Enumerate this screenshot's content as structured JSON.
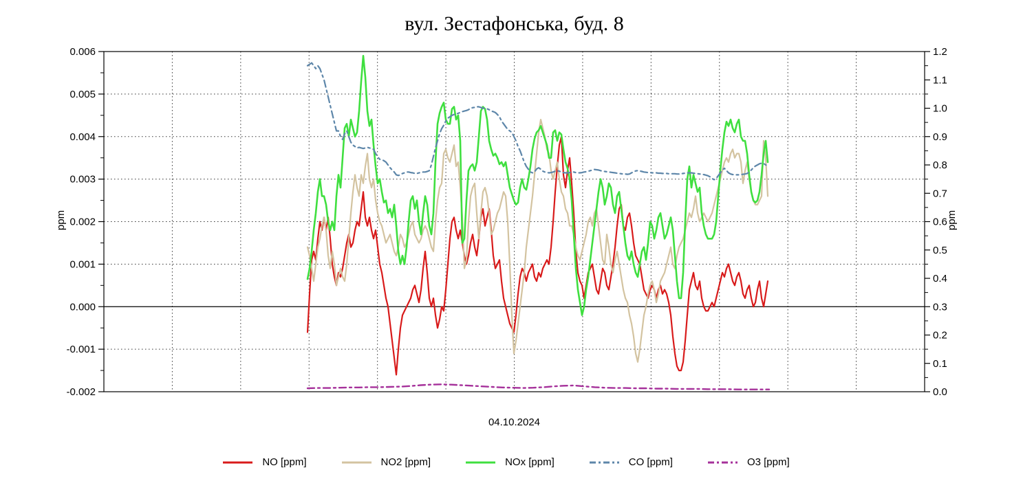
{
  "title": "вул. Зестафонська, буд. 8",
  "x_axis": {
    "date_label": "04.10.2024"
  },
  "left_axis": {
    "label": "ppm",
    "ticks": [
      "0.006",
      "0.005",
      "0.004",
      "0.003",
      "0.002",
      "0.001",
      "0.000",
      "-0.001",
      "-0.002"
    ]
  },
  "right_axis": {
    "label": "ppm",
    "ticks": [
      "1.2",
      "1.1",
      "1.0",
      "0.9",
      "0.8",
      "0.7",
      "0.6",
      "0.5",
      "0.4",
      "0.3",
      "0.2",
      "0.1",
      "0.0"
    ]
  },
  "legend": [
    {
      "label": "NO [ppm]",
      "color": "#d81a1a",
      "dash": "solid"
    },
    {
      "label": "NO2 [ppm]",
      "color": "#d3c3a0",
      "dash": "solid"
    },
    {
      "label": "NOx [ppm]",
      "color": "#3fdf3f",
      "dash": "solid"
    },
    {
      "label": "CO [ppm]",
      "color": "#5d86a9",
      "dash": "dashdot"
    },
    {
      "label": "O3 [ppm]",
      "color": "#a5309a",
      "dash": "dashdot"
    }
  ],
  "chart_data": {
    "type": "line",
    "title": "вул. Зестафонська, буд. 8",
    "x_label": "04.10.2024",
    "x_axis_note": "time axis without tick labels; x stored as fraction of plot width (0=left axis, 1=right axis), data occupies ~0.25..0.81",
    "left_axis": {
      "label": "ppm",
      "range": [
        -0.002,
        0.006
      ],
      "tick_step": 0.001
    },
    "right_axis": {
      "label": "ppm",
      "range": [
        0.0,
        1.2
      ],
      "tick_step": 0.1
    },
    "grid": true,
    "legend_position": "bottom",
    "zero_line_left_axis": true,
    "series": [
      {
        "name": "NO [ppm]",
        "axis": "left",
        "color": "#d81a1a",
        "dash": "solid",
        "width": 2.2,
        "x0": 0.2481,
        "dx": 0.0025146,
        "values": [
          -0.0006,
          0.0003,
          0.0011,
          0.0013,
          0.0011,
          0.0016,
          0.002,
          0.0018,
          0.0021,
          0.0018,
          0.0021,
          0.0016,
          0.001,
          0.0007,
          0.0005,
          0.0008,
          0.0007,
          0.0009,
          0.0012,
          0.0015,
          0.0017,
          0.0014,
          0.0015,
          0.0018,
          0.002,
          0.0019,
          0.0023,
          0.0027,
          0.0021,
          0.0019,
          0.0021,
          0.0018,
          0.0016,
          0.0018,
          0.0014,
          0.001,
          0.0008,
          0.0005,
          0.0002,
          0,
          -0.0004,
          -0.0008,
          -0.0012,
          -0.0016,
          -0.001,
          -0.0005,
          -0.0002,
          -0.0001,
          0,
          0.0001,
          0.0002,
          0.0004,
          0.0005,
          0.0003,
          0.0001,
          0.0004,
          0.0009,
          0.0013,
          0.0008,
          0.0002,
          0,
          0.0002,
          -0.0002,
          -0.0005,
          -0.0003,
          0,
          -0.0001,
          0.0004,
          0.001,
          0.0016,
          0.002,
          0.0021,
          0.0018,
          0.0016,
          0.0018,
          0.0015,
          0.0012,
          0.001,
          0.0012,
          0.0015,
          0.0017,
          0.0014,
          0.0012,
          0.0016,
          0.0021,
          0.0023,
          0.0019,
          0.0021,
          0.0023,
          0.0018,
          0.0012,
          0.0009,
          0.001,
          0.0011,
          0.0006,
          0.0002,
          0,
          -0.0002,
          -0.0004,
          -0.0005,
          -0.0006,
          -0.0002,
          0.0003,
          0.0007,
          0.0009,
          0.0008,
          0.0006,
          0.0008,
          0.0009,
          0.001,
          0.0007,
          0.0006,
          0.0008,
          0.0007,
          0.0009,
          0.001,
          0.0011,
          0.001,
          0.0014,
          0.002,
          0.0027,
          0.0033,
          0.0038,
          0.004,
          0.0031,
          0.0028,
          0.0032,
          0.0035,
          0.0029,
          0.0022,
          0.0013,
          0.0008,
          0.0006,
          0.0005,
          0.0002,
          0.0005,
          0.0008,
          0.0009,
          0.001,
          0.0007,
          0.0004,
          0.0003,
          0.0006,
          0.0009,
          0.0008,
          0.0005,
          0.0004,
          0.0007,
          0.001,
          0.0014,
          0.0019,
          0.0023,
          0.0024,
          0.0019,
          0.0018,
          0.0021,
          0.0022,
          0.0019,
          0.0015,
          0.0012,
          0.0011,
          0.001,
          0.0007,
          0.0004,
          0.0003,
          0.0002,
          0.0004,
          0.0005,
          0.0004,
          0.0002,
          0.0004,
          0.0005,
          0.0003,
          0.0004,
          0.0003,
          0.0001,
          -0.0002,
          -0.0007,
          -0.0011,
          -0.0014,
          -0.0015,
          -0.0015,
          -0.0013,
          -0.0008,
          -0.0002,
          0.0004,
          0.0006,
          0.0008,
          0.0005,
          0.0004,
          0.0006,
          0.0002,
          0,
          -0.0001,
          -0.0001,
          0,
          0.0001,
          0,
          0.0002,
          0.0004,
          0.0006,
          0.0008,
          0.0007,
          0.0009,
          0.001,
          0.0008,
          0.0006,
          0.0005,
          0.0007,
          0.0008,
          0.0006,
          0.0003,
          0.0002,
          0.0004,
          0.0005,
          0.0002,
          0,
          0.0001,
          0.0004,
          0.0006,
          0.0002,
          0,
          0.0003,
          0.0006
        ]
      },
      {
        "name": "NO2 [ppm]",
        "axis": "left",
        "color": "#d3c3a0",
        "dash": "solid",
        "width": 2.2,
        "x0": 0.2481,
        "dx": 0.0025146,
        "values": [
          0.0014,
          0.0012,
          0.0009,
          0.0006,
          0.001,
          0.0014,
          0.0016,
          0.0019,
          0.0021,
          0.0018,
          0.0012,
          0.0009,
          0.0013,
          0.001,
          0.0005,
          0.0007,
          0.0009,
          0.0007,
          0.0006,
          0.001,
          0.0016,
          0.0022,
          0.0027,
          0.0031,
          0.0028,
          0.0026,
          0.0031,
          0.0029,
          0.0033,
          0.0036,
          0.003,
          0.0028,
          0.003,
          0.0025,
          0.0022,
          0.002,
          0.0019,
          0.0017,
          0.0015,
          0.0016,
          0.0017,
          0.0015,
          0.0013,
          0.0012,
          0.0014,
          0.0017,
          0.0016,
          0.0014,
          0.0015,
          0.0017,
          0.0019,
          0.002,
          0.0017,
          0.0016,
          0.0015,
          0.0016,
          0.0018,
          0.0019,
          0.0018,
          0.0016,
          0.0014,
          0.0013,
          0.002,
          0.0025,
          0.0028,
          0.0029,
          0.0036,
          0.0037,
          0.0035,
          0.0034,
          0.0036,
          0.0038,
          0.0033,
          0.0034,
          0.0028,
          0.0021,
          0.0009,
          0.0011,
          0.002,
          0.0026,
          0.0028,
          0.0029,
          0.0022,
          0.0016,
          0.0022,
          0.0027,
          0.0028,
          0.0026,
          0.0022,
          0.0017,
          0.0018,
          0.002,
          0.0022,
          0.0023,
          0.0025,
          0.0027,
          0.0026,
          0.002,
          0.001,
          -0.0002,
          -0.0011,
          -0.0008,
          -0.0004,
          0,
          0.0004,
          0.0008,
          0.0014,
          0.0018,
          0.0022,
          0.0026,
          0.0031,
          0.0036,
          0.0041,
          0.0044,
          0.0042,
          0.004,
          0.0037,
          0.0036,
          0.0032,
          0.003,
          0.0032,
          0.0034,
          0.003,
          0.0027,
          0.0026,
          0.0023,
          0.0022,
          0.0019,
          0.0019,
          0.0017,
          0.0014,
          0.0012,
          0.0011,
          0.0013,
          0.0015,
          0.0017,
          0.002,
          0.0021,
          0.0019,
          0.0022,
          0.0023,
          0.0019,
          0.0015,
          0.0011,
          0.001,
          0.0017,
          0.0014,
          0.001,
          0.0008,
          0.0011,
          0.0013,
          0.001,
          0.0007,
          0.0004,
          0.0002,
          0.0001,
          -0.0002,
          -0.0004,
          -0.0007,
          -0.0011,
          -0.0013,
          -0.001,
          -0.0006,
          -0.0002,
          0,
          0.0003,
          0.0005,
          0.0006,
          0.0004,
          0.0001,
          0.0003,
          0.0006,
          0.0007,
          0.0008,
          0.001,
          0.0012,
          0.0014,
          0.001,
          0.0009,
          0.0012,
          0.0014,
          0.0015,
          0.0016,
          0.0018,
          0.002,
          0.0022,
          0.0021,
          0.0023,
          0.0026,
          0.0022,
          0.002,
          0.0021,
          0.0022,
          0.0021,
          0.002,
          0.0021,
          0.0022,
          0.0024,
          0.0026,
          0.0028,
          0.003,
          0.0032,
          0.0034,
          0.0035,
          0.0034,
          0.0036,
          0.0037,
          0.0035,
          0.0036,
          0.0036,
          0.0034,
          0.0029,
          0.0032,
          0.0034,
          0.003,
          0.0027,
          0.0025,
          0.0024,
          0.0024,
          0.0025,
          0.0026,
          0.0039,
          0.0035,
          0.0026
        ]
      },
      {
        "name": "NOx [ppm]",
        "axis": "left",
        "color": "#3fdf3f",
        "dash": "solid",
        "width": 2.6,
        "x0": 0.2481,
        "dx": 0.0025146,
        "values": [
          0.00065,
          0.0009,
          0.0013,
          0.0018,
          0.0022,
          0.0027,
          0.003,
          0.0026,
          0.0026,
          0.0024,
          0.002,
          0.0018,
          0.002,
          0.0018,
          0.0026,
          0.0031,
          0.0028,
          0.0035,
          0.0042,
          0.0043,
          0.004,
          0.0044,
          0.0042,
          0.004,
          0.0041,
          0.0046,
          0.0053,
          0.0059,
          0.0054,
          0.0046,
          0.00425,
          0.0044,
          0.0038,
          0.0033,
          0.0029,
          0.003,
          0.0027,
          0.00245,
          0.0025,
          0.0022,
          0.0023,
          0.0021,
          0.0024,
          0.0019,
          0.0013,
          0.001,
          0.0012,
          0.001,
          0.0014,
          0.002,
          0.0025,
          0.0026,
          0.0023,
          0.0025,
          0.002,
          0.0017,
          0.0022,
          0.0026,
          0.0024,
          0.0019,
          0.0017,
          0.0022,
          0.0034,
          0.0043,
          0.00455,
          0.0047,
          0.0048,
          0.0044,
          0.0043,
          0.0043,
          0.00465,
          0.0047,
          0.0044,
          0.0045,
          0.0039,
          0.0015,
          0.0016,
          0.0025,
          0.0032,
          0.0033,
          0.00335,
          0.0032,
          0.0034,
          0.004,
          0.0046,
          0.0047,
          0.00465,
          0.0044,
          0.0039,
          0.0037,
          0.00355,
          0.0036,
          0.0035,
          0.00335,
          0.0034,
          0.0033,
          0.0034,
          0.0031,
          0.0028,
          0.00265,
          0.0025,
          0.0024,
          0.00245,
          0.0028,
          0.003,
          0.0028,
          0.00275,
          0.003,
          0.0033,
          0.0037,
          0.00395,
          0.0041,
          0.00415,
          0.00425,
          0.0041,
          0.00395,
          0.0038,
          0.0035,
          0.0035,
          0.0041,
          0.00415,
          0.0039,
          0.0041,
          0.00405,
          0.0037,
          0.0034,
          0.00325,
          0.003,
          0.0025,
          0.0017,
          0.0009,
          0.0004,
          0.0001,
          -0.0002,
          0,
          0.0004,
          0.0007,
          0.0011,
          0.0015,
          0.0019,
          0.0023,
          0.0027,
          0.003,
          0.0028,
          0.0024,
          0.0026,
          0.0029,
          0.0028,
          0.0024,
          0.0022,
          0.0026,
          0.0027,
          0.0023,
          0.0019,
          0.0015,
          0.0012,
          0.0011,
          0.0013,
          0.001,
          0.0008,
          0.0007,
          0.001,
          0.0013,
          0.0014,
          0.0011,
          0.0015,
          0.002,
          0.0019,
          0.0016,
          0.0018,
          0.0021,
          0.0022,
          0.0019,
          0.0016,
          0.0017,
          0.0019,
          0.0021,
          0.0018,
          0.0012,
          0.0006,
          0.0002,
          0.0002,
          0.0008,
          0.002,
          0.003,
          0.0033,
          0.0028,
          0.0031,
          0.0029,
          0.0027,
          0.0028,
          0.0022,
          0.0019,
          0.0017,
          0.0016,
          0.0016,
          0.0016,
          0.0017,
          0.002,
          0.0026,
          0.0032,
          0.0037,
          0.0041,
          0.00435,
          0.00425,
          0.0044,
          0.0042,
          0.0041,
          0.0043,
          0.0044,
          0.004,
          0.0039,
          0.0039,
          0.0036,
          0.0031,
          0.0027,
          0.0025,
          0.00245,
          0.0025,
          0.0027,
          0.0031,
          0.0036,
          0.0039,
          0.0034
        ]
      },
      {
        "name": "CO [ppm]",
        "axis": "right",
        "color": "#5d86a9",
        "dash": "dashdot",
        "width": 2.2,
        "x0": 0.2481,
        "dx": 0.0025146,
        "values": [
          1.15,
          1.155,
          1.16,
          1.15,
          1.14,
          1.15,
          1.14,
          1.12,
          1.1,
          1.07,
          1.04,
          1.01,
          0.98,
          0.95,
          0.92,
          0.92,
          0.9,
          0.89,
          0.91,
          0.92,
          0.9,
          0.88,
          0.87,
          0.865,
          0.86,
          0.862,
          0.86,
          0.858,
          0.86,
          0.862,
          0.86,
          0.858,
          0.855,
          0.84,
          0.828,
          0.82,
          0.818,
          0.815,
          0.81,
          0.8,
          0.79,
          0.782,
          0.775,
          0.765,
          0.763,
          0.765,
          0.77,
          0.772,
          0.775,
          0.775,
          0.773,
          0.772,
          0.77,
          0.77,
          0.772,
          0.773,
          0.775,
          0.775,
          0.777,
          0.78,
          0.8,
          0.83,
          0.86,
          0.885,
          0.91,
          0.928,
          0.94,
          0.955,
          0.965,
          0.97,
          0.975,
          0.978,
          0.98,
          0.982,
          0.985,
          0.988,
          0.99,
          0.992,
          0.995,
          1,
          1.002,
          1.003,
          1.005,
          1.005,
          1.003,
          1,
          1,
          0.998,
          0.995,
          0.99,
          0.988,
          0.985,
          0.978,
          0.97,
          0.955,
          0.945,
          0.935,
          0.925,
          0.92,
          0.915,
          0.9,
          0.885,
          0.865,
          0.85,
          0.83,
          0.81,
          0.795,
          0.785,
          0.775,
          0.772,
          0.775,
          0.786,
          0.79,
          0.785,
          0.778,
          0.775,
          0.773,
          0.772,
          0.773,
          0.775,
          0.778,
          0.78,
          0.778,
          0.775,
          0.773,
          0.772,
          0.772,
          0.773,
          0.775,
          0.775,
          0.773,
          0.772,
          0.772,
          0.773,
          0.775,
          0.776,
          0.778,
          0.78,
          0.782,
          0.784,
          0.783,
          0.782,
          0.78,
          0.778,
          0.777,
          0.776,
          0.775,
          0.774,
          0.773,
          0.772,
          0.771,
          0.77,
          0.769,
          0.768,
          0.768,
          0.767,
          0.768,
          0.772,
          0.776,
          0.779,
          0.78,
          0.779,
          0.777,
          0.775,
          0.774,
          0.773,
          0.773,
          0.772,
          0.772,
          0.772,
          0.771,
          0.771,
          0.77,
          0.77,
          0.77,
          0.769,
          0.769,
          0.769,
          0.769,
          0.768,
          0.768,
          0.769,
          0.77,
          0.771,
          0.772,
          0.772,
          0.772,
          0.771,
          0.77,
          0.769,
          0.768,
          0.767,
          0.766,
          0.764,
          0.762,
          0.758,
          0.752,
          0.748,
          0.752,
          0.762,
          0.772,
          0.782,
          0.788,
          0.78,
          0.772,
          0.768,
          0.766,
          0.765,
          0.765,
          0.765,
          0.766,
          0.767,
          0.768,
          0.77,
          0.775,
          0.782,
          0.79,
          0.796,
          0.8,
          0.804,
          0.806,
          0.805,
          0.8,
          0.796
        ]
      },
      {
        "name": "O3 [ppm]",
        "axis": "right",
        "color": "#a5309a",
        "dash": "dashdot",
        "width": 2.4,
        "x0": 0.2481,
        "dx": 0.0125,
        "values": [
          0.012,
          0.013,
          0.013,
          0.014,
          0.015,
          0.015,
          0.016,
          0.016,
          0.017,
          0.018,
          0.02,
          0.023,
          0.025,
          0.026,
          0.025,
          0.023,
          0.021,
          0.019,
          0.017,
          0.015,
          0.014,
          0.013,
          0.014,
          0.016,
          0.019,
          0.021,
          0.022,
          0.019,
          0.016,
          0.014,
          0.013,
          0.013,
          0.012,
          0.012,
          0.011,
          0.011,
          0.01,
          0.01,
          0.01,
          0.009,
          0.009,
          0.009,
          0.008,
          0.008,
          0.008,
          0.008
        ]
      }
    ]
  }
}
